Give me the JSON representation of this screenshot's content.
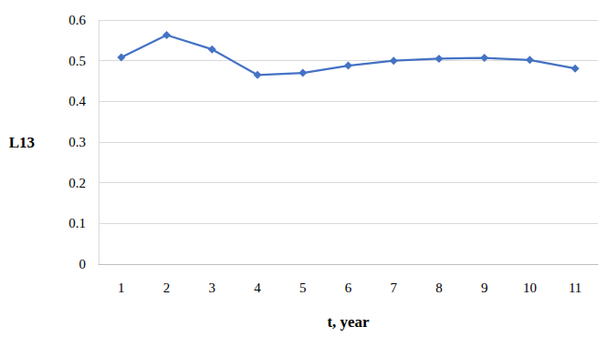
{
  "chart_data": {
    "type": "line",
    "x_label": "t, year",
    "y_label": "L13",
    "categories": [
      "1",
      "2",
      "3",
      "4",
      "5",
      "6",
      "7",
      "8",
      "9",
      "10",
      "11"
    ],
    "values": [
      0.508,
      0.563,
      0.528,
      0.465,
      0.47,
      0.488,
      0.5,
      0.505,
      0.507,
      0.502,
      0.481
    ],
    "color": "#4472c4",
    "marker": "diamond",
    "line_style": "solid",
    "ylim": [
      0,
      0.6
    ],
    "yticks": [
      0,
      0.1,
      0.2,
      0.3,
      0.4,
      0.5,
      0.6
    ],
    "grid": true
  }
}
